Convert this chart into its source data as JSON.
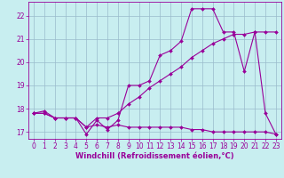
{
  "xlabel": "Windchill (Refroidissement éolien,°C)",
  "background_color": "#c8eef0",
  "line_color": "#990099",
  "grid_color": "#99bbcc",
  "ylim": [
    16.7,
    22.6
  ],
  "xlim": [
    -0.5,
    23.5
  ],
  "yticks": [
    17,
    18,
    19,
    20,
    21,
    22
  ],
  "xticks": [
    0,
    1,
    2,
    3,
    4,
    5,
    6,
    7,
    8,
    9,
    10,
    11,
    12,
    13,
    14,
    15,
    16,
    17,
    18,
    19,
    20,
    21,
    22,
    23
  ],
  "line1_x": [
    0,
    1,
    2,
    3,
    4,
    5,
    6,
    7,
    8,
    9,
    10,
    11,
    12,
    13,
    14,
    15,
    16,
    17,
    18,
    19,
    20,
    21,
    22,
    23
  ],
  "line1_y": [
    17.8,
    17.9,
    17.6,
    17.6,
    17.6,
    16.9,
    17.5,
    17.1,
    17.5,
    19.0,
    19.0,
    19.2,
    20.3,
    20.5,
    20.9,
    22.3,
    22.3,
    22.3,
    21.3,
    21.3,
    19.6,
    21.3,
    17.8,
    16.9
  ],
  "line2_x": [
    0,
    1,
    2,
    3,
    4,
    5,
    6,
    7,
    8,
    9,
    10,
    11,
    12,
    13,
    14,
    15,
    16,
    17,
    18,
    19,
    20,
    21,
    22,
    23
  ],
  "line2_y": [
    17.8,
    17.8,
    17.6,
    17.6,
    17.6,
    17.2,
    17.6,
    17.6,
    17.8,
    18.2,
    18.5,
    18.9,
    19.2,
    19.5,
    19.8,
    20.2,
    20.5,
    20.8,
    21.0,
    21.2,
    21.2,
    21.3,
    21.3,
    21.3
  ],
  "line3_x": [
    0,
    1,
    2,
    3,
    4,
    5,
    6,
    7,
    8,
    9,
    10,
    11,
    12,
    13,
    14,
    15,
    16,
    17,
    18,
    19,
    20,
    21,
    22,
    23
  ],
  "line3_y": [
    17.8,
    17.8,
    17.6,
    17.6,
    17.6,
    17.2,
    17.3,
    17.2,
    17.3,
    17.2,
    17.2,
    17.2,
    17.2,
    17.2,
    17.2,
    17.1,
    17.1,
    17.0,
    17.0,
    17.0,
    17.0,
    17.0,
    17.0,
    16.9
  ],
  "tick_fontsize": 5.5,
  "xlabel_fontsize": 6.0,
  "marker": "D",
  "markersize": 2.0,
  "linewidth": 0.8
}
